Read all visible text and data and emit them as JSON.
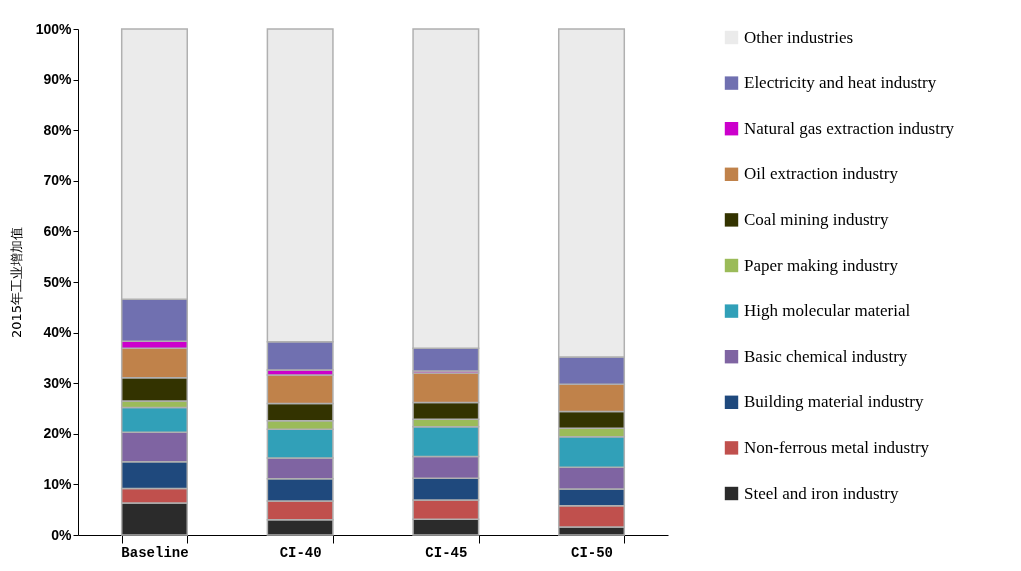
{
  "chart_data": {
    "type": "bar",
    "stacked": true,
    "ylabel": "2015年工业增加值",
    "categories": [
      "Baseline",
      "CI-40",
      "CI-45",
      "CI-50"
    ],
    "ylim": [
      0,
      100
    ],
    "yticks": [
      {
        "value": 0,
        "label": "0%"
      },
      {
        "value": 10,
        "label": "10%"
      },
      {
        "value": 20,
        "label": "20%"
      },
      {
        "value": 30,
        "label": "30%"
      },
      {
        "value": 40,
        "label": "40%"
      },
      {
        "value": 50,
        "label": "50%"
      },
      {
        "value": 60,
        "label": "60%"
      },
      {
        "value": 70,
        "label": "70%"
      },
      {
        "value": 80,
        "label": "80%"
      },
      {
        "value": 90,
        "label": "90%"
      },
      {
        "value": 100,
        "label": "100%"
      }
    ],
    "legend": "right",
    "grid": false,
    "series": [
      {
        "name": "Steel and iron industry",
        "color": "#2b2b2b",
        "values": [
          6.3,
          3.0,
          3.1,
          1.6
        ]
      },
      {
        "name": "Non-ferrous metal industry",
        "color": "#c0504d",
        "values": [
          2.9,
          3.7,
          3.8,
          4.2
        ]
      },
      {
        "name": "Building material industry",
        "color": "#1f497d",
        "values": [
          5.3,
          4.4,
          4.3,
          3.3
        ]
      },
      {
        "name": "Basic chemical industry",
        "color": "#7f64a2",
        "values": [
          5.8,
          4.1,
          4.3,
          4.3
        ]
      },
      {
        "name": "High molecular material",
        "color": "#31a0b8",
        "values": [
          4.9,
          5.7,
          5.9,
          6.0
        ]
      },
      {
        "name": "Paper making industry",
        "color": "#9bbb59",
        "values": [
          1.3,
          1.7,
          1.5,
          1.7
        ]
      },
      {
        "name": "Coal mining industry",
        "color": "#333300",
        "values": [
          4.6,
          3.4,
          3.3,
          3.3
        ]
      },
      {
        "name": "Oil extraction industry",
        "color": "#c0824a",
        "values": [
          5.8,
          5.6,
          5.8,
          5.4
        ]
      },
      {
        "name": "Natural gas extraction industry",
        "color": "#cc00cc",
        "values": [
          1.4,
          1.0,
          0.4,
          0
        ]
      },
      {
        "name": "Electricity and heat industry",
        "color": "#7070b0",
        "values": [
          8.3,
          5.6,
          4.5,
          5.4
        ]
      },
      {
        "name": "Other industries",
        "color": "#ebebeb",
        "values": [
          53.4,
          61.8,
          63.1,
          64.8
        ]
      }
    ]
  }
}
